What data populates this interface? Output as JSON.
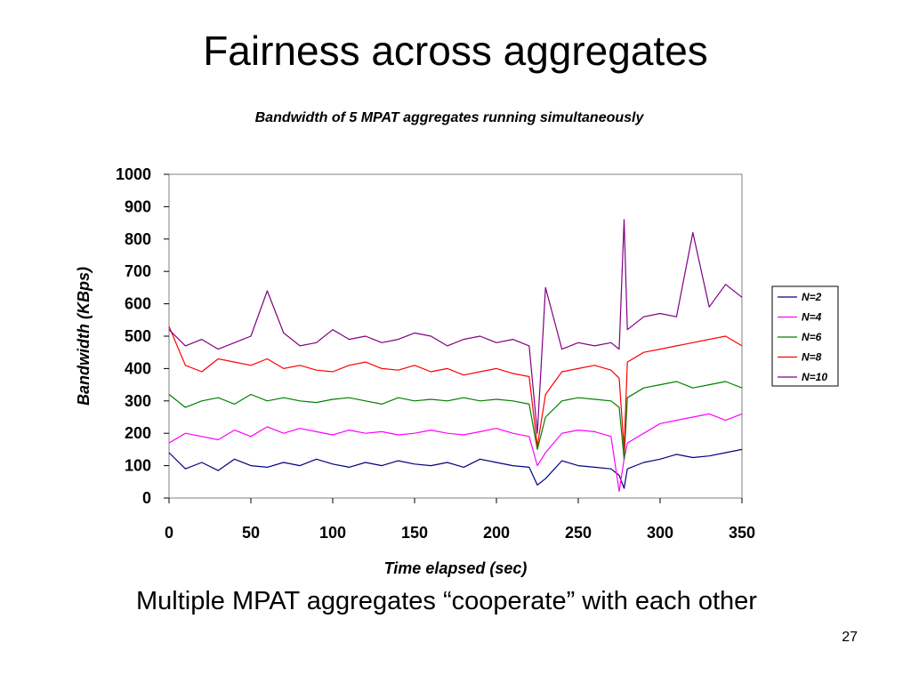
{
  "slide": {
    "title": "Fairness across aggregates",
    "caption": "Multiple MPAT aggregates “cooperate” with each other",
    "page_number": "27"
  },
  "chart_data": {
    "type": "line",
    "title": "Bandwidth of 5 MPAT aggregates running simultaneously",
    "xlabel": "Time elapsed (sec)",
    "ylabel": "Bandwidth (KBps)",
    "xlim": [
      0,
      350
    ],
    "ylim": [
      0,
      1000
    ],
    "xticks": [
      0,
      50,
      100,
      150,
      200,
      250,
      300,
      350
    ],
    "yticks": [
      0,
      100,
      200,
      300,
      400,
      500,
      600,
      700,
      800,
      900,
      1000
    ],
    "grid": false,
    "legend_position": "right",
    "series": [
      {
        "name": "N=2",
        "color": "#000080",
        "x": [
          0,
          10,
          20,
          30,
          40,
          50,
          60,
          70,
          80,
          90,
          100,
          110,
          120,
          130,
          140,
          150,
          160,
          170,
          180,
          190,
          200,
          210,
          220,
          225,
          230,
          240,
          250,
          260,
          270,
          275,
          278,
          280,
          290,
          300,
          310,
          320,
          330,
          340,
          350
        ],
        "y": [
          140,
          90,
          110,
          85,
          120,
          100,
          95,
          110,
          100,
          120,
          105,
          95,
          110,
          100,
          115,
          105,
          100,
          110,
          95,
          120,
          110,
          100,
          95,
          40,
          60,
          115,
          100,
          95,
          90,
          70,
          30,
          90,
          110,
          120,
          135,
          125,
          130,
          140,
          150
        ]
      },
      {
        "name": "N=4",
        "color": "#ff00ff",
        "x": [
          0,
          10,
          20,
          30,
          40,
          50,
          60,
          70,
          80,
          90,
          100,
          110,
          120,
          130,
          140,
          150,
          160,
          170,
          180,
          190,
          200,
          210,
          220,
          225,
          230,
          240,
          250,
          260,
          270,
          275,
          278,
          280,
          290,
          300,
          310,
          320,
          330,
          340,
          350
        ],
        "y": [
          170,
          200,
          190,
          180,
          210,
          190,
          220,
          200,
          215,
          205,
          195,
          210,
          200,
          205,
          195,
          200,
          210,
          200,
          195,
          205,
          215,
          200,
          190,
          100,
          140,
          200,
          210,
          205,
          190,
          20,
          120,
          170,
          200,
          230,
          240,
          250,
          260,
          240,
          260
        ]
      },
      {
        "name": "N=6",
        "color": "#008000",
        "x": [
          0,
          10,
          20,
          30,
          40,
          50,
          60,
          70,
          80,
          90,
          100,
          110,
          120,
          130,
          140,
          150,
          160,
          170,
          180,
          190,
          200,
          210,
          220,
          225,
          230,
          240,
          250,
          260,
          270,
          275,
          278,
          280,
          290,
          300,
          310,
          320,
          330,
          340,
          350
        ],
        "y": [
          320,
          280,
          300,
          310,
          290,
          320,
          300,
          310,
          300,
          295,
          305,
          310,
          300,
          290,
          310,
          300,
          305,
          300,
          310,
          300,
          305,
          300,
          290,
          150,
          250,
          300,
          310,
          305,
          300,
          280,
          120,
          310,
          340,
          350,
          360,
          340,
          350,
          360,
          340
        ]
      },
      {
        "name": "N=8",
        "color": "#ff0000",
        "x": [
          0,
          10,
          20,
          30,
          40,
          50,
          60,
          70,
          80,
          90,
          100,
          110,
          120,
          130,
          140,
          150,
          160,
          170,
          180,
          190,
          200,
          210,
          220,
          225,
          230,
          240,
          250,
          260,
          270,
          275,
          278,
          280,
          290,
          300,
          310,
          320,
          330,
          340,
          350
        ],
        "y": [
          530,
          410,
          390,
          430,
          420,
          410,
          430,
          400,
          410,
          395,
          390,
          410,
          420,
          400,
          395,
          410,
          390,
          400,
          380,
          390,
          400,
          385,
          375,
          160,
          320,
          390,
          400,
          410,
          395,
          370,
          150,
          420,
          450,
          460,
          470,
          480,
          490,
          500,
          470
        ]
      },
      {
        "name": "N=10",
        "color": "#800080",
        "x": [
          0,
          10,
          20,
          30,
          40,
          50,
          60,
          70,
          80,
          90,
          100,
          110,
          120,
          130,
          140,
          150,
          160,
          170,
          180,
          190,
          200,
          210,
          220,
          225,
          230,
          240,
          250,
          260,
          270,
          275,
          278,
          280,
          290,
          300,
          310,
          320,
          330,
          340,
          350
        ],
        "y": [
          520,
          470,
          490,
          460,
          480,
          500,
          640,
          510,
          470,
          480,
          520,
          490,
          500,
          480,
          490,
          510,
          500,
          470,
          490,
          500,
          480,
          490,
          470,
          200,
          650,
          460,
          480,
          470,
          480,
          460,
          860,
          520,
          560,
          570,
          560,
          820,
          590,
          660,
          620
        ]
      }
    ]
  }
}
